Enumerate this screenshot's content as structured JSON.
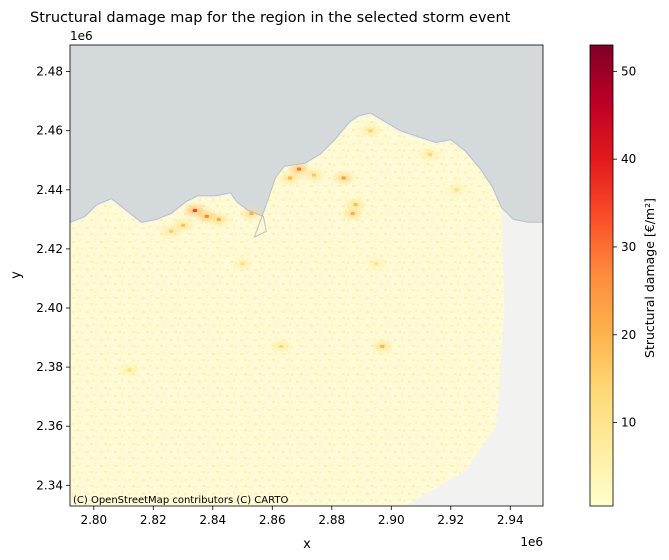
{
  "chart_data": {
    "type": "heatmap",
    "title": "Structural damage map for the region in the selected storm event",
    "xlabel": "x",
    "ylabel": "y",
    "x_offset_label": "1e6",
    "y_offset_label": "1e6",
    "xlim": [
      2.792,
      2.951
    ],
    "ylim": [
      2.333,
      2.489
    ],
    "x_ticks": [
      {
        "value": 2.8,
        "label": "2.80"
      },
      {
        "value": 2.82,
        "label": "2.82"
      },
      {
        "value": 2.84,
        "label": "2.84"
      },
      {
        "value": 2.86,
        "label": "2.86"
      },
      {
        "value": 2.88,
        "label": "2.88"
      },
      {
        "value": 2.9,
        "label": "2.90"
      },
      {
        "value": 2.92,
        "label": "2.92"
      },
      {
        "value": 2.94,
        "label": "2.94"
      }
    ],
    "y_ticks": [
      {
        "value": 2.34,
        "label": "2.34"
      },
      {
        "value": 2.36,
        "label": "2.36"
      },
      {
        "value": 2.38,
        "label": "2.38"
      },
      {
        "value": 2.4,
        "label": "2.40"
      },
      {
        "value": 2.42,
        "label": "2.42"
      },
      {
        "value": 2.44,
        "label": "2.44"
      },
      {
        "value": 2.46,
        "label": "2.46"
      },
      {
        "value": 2.48,
        "label": "2.48"
      }
    ],
    "colorbar": {
      "label": "Structural damage [€/m²]",
      "colormap": "YlOrRd",
      "range": [
        0.5,
        53
      ],
      "ticks": [
        {
          "value": 10,
          "label": "10"
        },
        {
          "value": 20,
          "label": "20"
        },
        {
          "value": 30,
          "label": "30"
        },
        {
          "value": 40,
          "label": "40"
        },
        {
          "value": 50,
          "label": "50"
        }
      ],
      "colors": [
        "#ffffcc",
        "#ffeda0",
        "#fed976",
        "#feb24c",
        "#fd8d3c",
        "#fc4e2a",
        "#e31a1c",
        "#bd0026",
        "#800026"
      ]
    },
    "basemap": {
      "attribution": "(C) OpenStreetMap contributors (C) CARTO",
      "sea_color": "#d4dadc",
      "land_color": "#f2f3f1"
    },
    "coastline": [
      [
        2.792,
        2.429
      ],
      [
        2.797,
        2.431
      ],
      [
        2.801,
        2.435
      ],
      [
        2.806,
        2.437
      ],
      [
        2.811,
        2.433
      ],
      [
        2.816,
        2.429
      ],
      [
        2.821,
        2.43
      ],
      [
        2.826,
        2.432
      ],
      [
        2.831,
        2.436
      ],
      [
        2.835,
        2.438
      ],
      [
        2.841,
        2.438
      ],
      [
        2.846,
        2.439
      ],
      [
        2.848,
        2.436
      ],
      [
        2.852,
        2.433
      ],
      [
        2.857,
        2.431
      ],
      [
        2.858,
        2.426
      ],
      [
        2.854,
        2.424
      ],
      [
        2.858,
        2.435
      ],
      [
        2.861,
        2.444
      ],
      [
        2.864,
        2.448
      ],
      [
        2.871,
        2.449
      ],
      [
        2.876,
        2.452
      ],
      [
        2.881,
        2.457
      ],
      [
        2.886,
        2.463
      ],
      [
        2.889,
        2.465
      ],
      [
        2.893,
        2.466
      ],
      [
        2.898,
        2.463
      ],
      [
        2.903,
        2.46
      ],
      [
        2.909,
        2.458
      ],
      [
        2.915,
        2.456
      ],
      [
        2.92,
        2.457
      ],
      [
        2.925,
        2.453
      ],
      [
        2.93,
        2.447
      ],
      [
        2.934,
        2.441
      ],
      [
        2.937,
        2.434
      ],
      [
        2.941,
        2.43
      ],
      [
        2.946,
        2.429
      ],
      [
        2.951,
        2.429
      ]
    ],
    "damage_hotspots": [
      {
        "x": 2.834,
        "y": 2.433,
        "value": 35
      },
      {
        "x": 2.838,
        "y": 2.431,
        "value": 28
      },
      {
        "x": 2.842,
        "y": 2.43,
        "value": 22
      },
      {
        "x": 2.83,
        "y": 2.428,
        "value": 18
      },
      {
        "x": 2.826,
        "y": 2.426,
        "value": 16
      },
      {
        "x": 2.869,
        "y": 2.447,
        "value": 30
      },
      {
        "x": 2.866,
        "y": 2.444,
        "value": 20
      },
      {
        "x": 2.874,
        "y": 2.445,
        "value": 17
      },
      {
        "x": 2.884,
        "y": 2.444,
        "value": 25
      },
      {
        "x": 2.887,
        "y": 2.432,
        "value": 22
      },
      {
        "x": 2.888,
        "y": 2.435,
        "value": 18
      },
      {
        "x": 2.893,
        "y": 2.46,
        "value": 15
      },
      {
        "x": 2.913,
        "y": 2.452,
        "value": 14
      },
      {
        "x": 2.897,
        "y": 2.387,
        "value": 20
      },
      {
        "x": 2.863,
        "y": 2.387,
        "value": 14
      },
      {
        "x": 2.812,
        "y": 2.379,
        "value": 12
      },
      {
        "x": 2.85,
        "y": 2.415,
        "value": 12
      },
      {
        "x": 2.895,
        "y": 2.415,
        "value": 11
      },
      {
        "x": 2.922,
        "y": 2.44,
        "value": 12
      },
      {
        "x": 2.853,
        "y": 2.432,
        "value": 22
      }
    ],
    "region_extent": {
      "x": [
        2.792,
        2.938
      ],
      "y": [
        2.333,
        2.466
      ]
    }
  }
}
